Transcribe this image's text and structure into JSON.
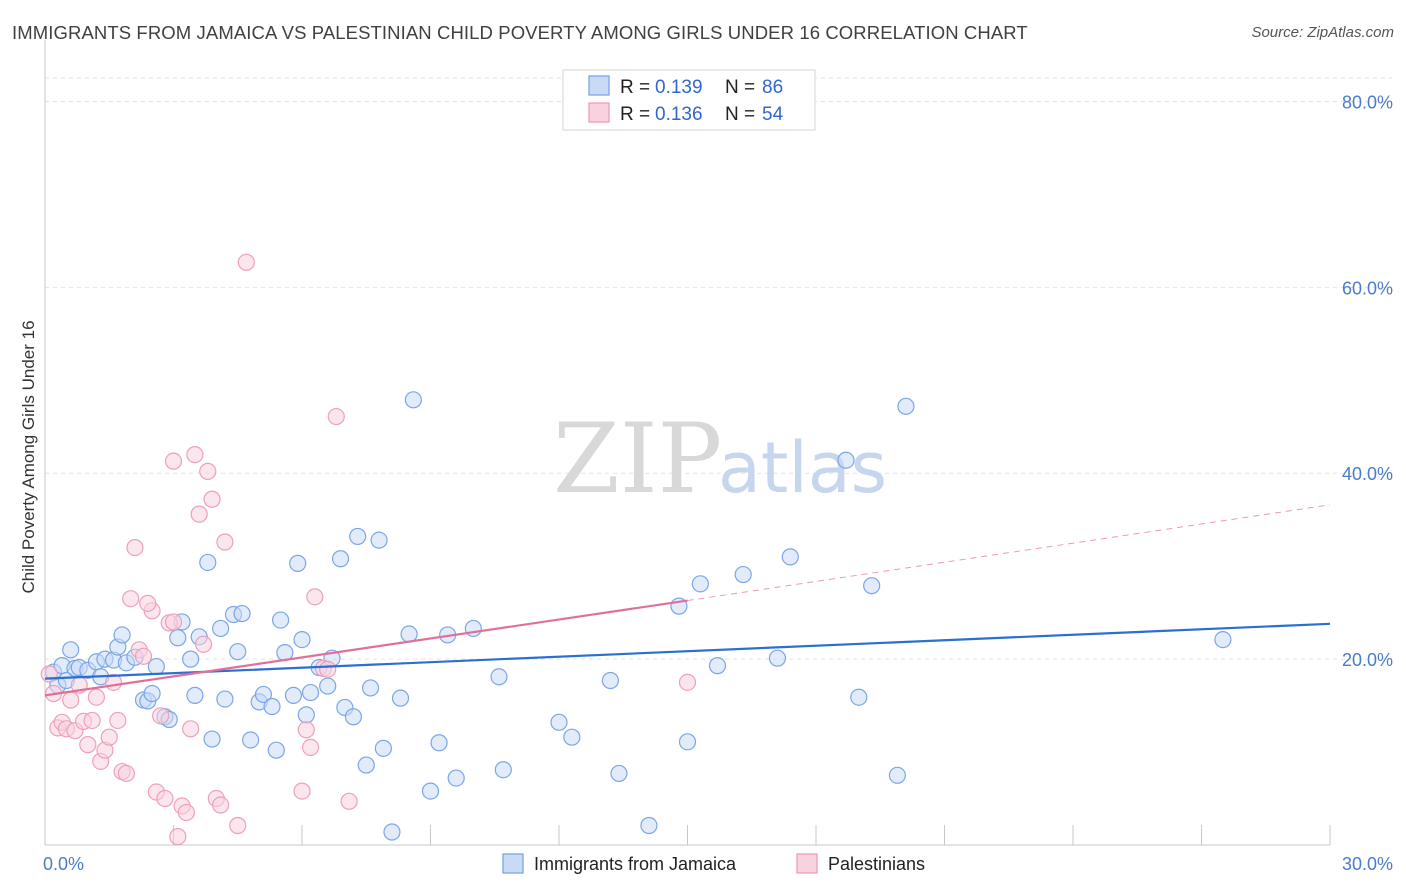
{
  "title": "IMMIGRANTS FROM JAMAICA VS PALESTINIAN CHILD POVERTY AMONG GIRLS UNDER 16 CORRELATION CHART",
  "source": "Source: ZipAtlas.com",
  "watermark": {
    "zip": "ZIP",
    "atlas": "atlas"
  },
  "chart_data": {
    "type": "scatter",
    "title": "IMMIGRANTS FROM JAMAICA VS PALESTINIAN CHILD POVERTY AMONG GIRLS UNDER 16 CORRELATION CHART",
    "xlabel": "",
    "ylabel": "Child Poverty Among Girls Under 16",
    "xlim": [
      0,
      30
    ],
    "ylim": [
      0,
      85
    ],
    "x_tick_labels": [
      "0.0%",
      "30.0%"
    ],
    "y_ticks": [
      20,
      40,
      60,
      80
    ],
    "y_tick_labels": [
      "20.0%",
      "40.0%",
      "60.0%",
      "80.0%"
    ],
    "grid": true,
    "legend": {
      "placement": "top-center",
      "entries": [
        {
          "r_label": "R =",
          "r_value": "0.139",
          "n_label": "N =",
          "n_value": "86"
        },
        {
          "r_label": "R =",
          "r_value": "0.136",
          "n_label": "N =",
          "n_value": "54"
        }
      ]
    },
    "series": [
      {
        "name": "Immigrants from Jamaica",
        "color": "#7aa6e8",
        "fill": "#c9daf5",
        "trend_color": "#2a6fd1",
        "trend": {
          "x0": 0,
          "y0": 17.9,
          "x1": 30,
          "y1": 23.8,
          "dashed_from": null
        },
        "points": [
          [
            0.2,
            18.6
          ],
          [
            0.3,
            17.2
          ],
          [
            0.4,
            19.3
          ],
          [
            0.5,
            17.7
          ],
          [
            0.6,
            21.0
          ],
          [
            0.7,
            19.0
          ],
          [
            0.8,
            19.1
          ],
          [
            1.0,
            18.8
          ],
          [
            1.2,
            19.7
          ],
          [
            1.3,
            18.1
          ],
          [
            1.4,
            20.0
          ],
          [
            1.6,
            19.9
          ],
          [
            1.7,
            21.3
          ],
          [
            1.8,
            22.6
          ],
          [
            1.9,
            19.6
          ],
          [
            2.1,
            20.2
          ],
          [
            2.3,
            15.6
          ],
          [
            2.4,
            15.5
          ],
          [
            2.5,
            16.3
          ],
          [
            2.6,
            19.2
          ],
          [
            2.8,
            13.8
          ],
          [
            2.9,
            13.5
          ],
          [
            3.1,
            22.3
          ],
          [
            3.2,
            24.0
          ],
          [
            3.4,
            20.0
          ],
          [
            3.5,
            16.1
          ],
          [
            3.6,
            22.4
          ],
          [
            3.8,
            30.4
          ],
          [
            3.9,
            11.4
          ],
          [
            4.1,
            23.3
          ],
          [
            4.2,
            15.7
          ],
          [
            4.4,
            24.8
          ],
          [
            4.5,
            20.8
          ],
          [
            4.6,
            24.9
          ],
          [
            4.8,
            11.3
          ],
          [
            5.0,
            15.4
          ],
          [
            5.1,
            16.2
          ],
          [
            5.3,
            14.9
          ],
          [
            5.4,
            10.2
          ],
          [
            5.5,
            24.2
          ],
          [
            5.6,
            20.7
          ],
          [
            5.8,
            16.1
          ],
          [
            5.9,
            30.3
          ],
          [
            6.0,
            22.1
          ],
          [
            6.1,
            14.0
          ],
          [
            6.2,
            16.4
          ],
          [
            6.4,
            19.1
          ],
          [
            6.6,
            17.1
          ],
          [
            6.7,
            20.1
          ],
          [
            6.9,
            30.8
          ],
          [
            7.0,
            14.8
          ],
          [
            7.2,
            13.8
          ],
          [
            7.3,
            33.2
          ],
          [
            7.5,
            8.6
          ],
          [
            7.6,
            16.9
          ],
          [
            7.8,
            32.8
          ],
          [
            7.9,
            10.4
          ],
          [
            8.1,
            1.4
          ],
          [
            8.3,
            15.8
          ],
          [
            8.5,
            22.7
          ],
          [
            8.6,
            47.9
          ],
          [
            9.0,
            5.8
          ],
          [
            9.2,
            11.0
          ],
          [
            9.4,
            22.6
          ],
          [
            9.6,
            7.2
          ],
          [
            10.0,
            23.3
          ],
          [
            10.6,
            18.1
          ],
          [
            10.7,
            8.1
          ],
          [
            12.0,
            13.2
          ],
          [
            12.3,
            11.6
          ],
          [
            13.2,
            17.7
          ],
          [
            13.4,
            7.7
          ],
          [
            14.1,
            2.1
          ],
          [
            14.8,
            25.7
          ],
          [
            15.0,
            11.1
          ],
          [
            15.3,
            28.1
          ],
          [
            15.7,
            19.3
          ],
          [
            16.3,
            29.1
          ],
          [
            17.1,
            20.1
          ],
          [
            17.4,
            31.0
          ],
          [
            18.7,
            41.4
          ],
          [
            19.0,
            15.9
          ],
          [
            19.3,
            27.9
          ],
          [
            20.1,
            47.2
          ],
          [
            19.9,
            7.5
          ],
          [
            27.5,
            22.1
          ]
        ]
      },
      {
        "name": "Palestinians",
        "color": "#ee9fba",
        "fill": "#f9d2df",
        "trend_color": "#e0709a",
        "trend": {
          "x0": 0,
          "y0": 16.1,
          "x1": 15.0,
          "y1": 26.3,
          "x2": 30,
          "y2": 36.6
        },
        "points": [
          [
            0.1,
            18.4
          ],
          [
            0.2,
            16.3
          ],
          [
            0.3,
            12.6
          ],
          [
            0.4,
            13.2
          ],
          [
            0.5,
            12.5
          ],
          [
            0.6,
            15.6
          ],
          [
            0.7,
            12.3
          ],
          [
            0.8,
            17.2
          ],
          [
            0.9,
            13.3
          ],
          [
            1.0,
            10.8
          ],
          [
            1.1,
            13.4
          ],
          [
            1.2,
            15.9
          ],
          [
            1.3,
            9.0
          ],
          [
            1.4,
            10.2
          ],
          [
            1.5,
            11.6
          ],
          [
            1.6,
            17.5
          ],
          [
            1.7,
            13.4
          ],
          [
            1.8,
            7.9
          ],
          [
            1.9,
            7.7
          ],
          [
            2.0,
            26.5
          ],
          [
            2.1,
            32.0
          ],
          [
            2.2,
            21.0
          ],
          [
            2.3,
            20.3
          ],
          [
            2.5,
            25.2
          ],
          [
            2.6,
            5.7
          ],
          [
            2.7,
            13.9
          ],
          [
            2.8,
            5.0
          ],
          [
            2.9,
            23.9
          ],
          [
            3.0,
            24.0
          ],
          [
            3.1,
            0.9
          ],
          [
            3.2,
            4.2
          ],
          [
            3.3,
            3.5
          ],
          [
            3.4,
            12.5
          ],
          [
            3.5,
            42.0
          ],
          [
            3.6,
            35.6
          ],
          [
            3.7,
            21.6
          ],
          [
            3.8,
            40.2
          ],
          [
            3.9,
            37.2
          ],
          [
            4.0,
            5.0
          ],
          [
            4.1,
            4.3
          ],
          [
            4.2,
            32.6
          ],
          [
            4.5,
            2.1
          ],
          [
            4.7,
            62.7
          ],
          [
            6.0,
            5.8
          ],
          [
            6.1,
            12.4
          ],
          [
            6.2,
            10.5
          ],
          [
            6.3,
            26.7
          ],
          [
            6.5,
            19.0
          ],
          [
            6.6,
            18.9
          ],
          [
            6.8,
            46.1
          ],
          [
            7.1,
            4.7
          ],
          [
            15.0,
            17.5
          ],
          [
            3.0,
            41.3
          ],
          [
            2.4,
            26.0
          ]
        ]
      }
    ]
  },
  "bottom_legend": [
    "Immigrants from Jamaica",
    "Palestinians"
  ]
}
